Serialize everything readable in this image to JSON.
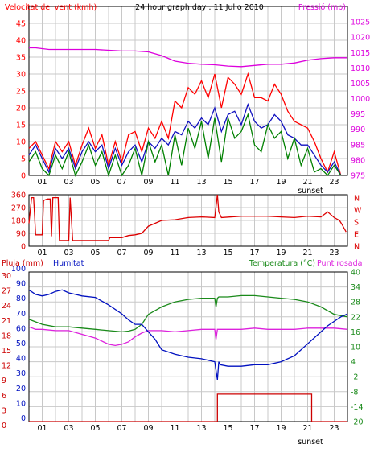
{
  "colors": {
    "wind": "#ff0000",
    "gust": "#1010c0",
    "avg": "#008000",
    "pressure": "#dd00dd",
    "direction": "#dd0000",
    "humidity": "#0010c0",
    "temperature": "#1a8a1a",
    "dewpoint": "#dd22dd",
    "rain": "#cc0000",
    "frame": "#000000",
    "grid": "#c8c8c8"
  },
  "chart_data": [
    {
      "type": "line",
      "id": "wind-pressure",
      "title": "24 hour graph day : 11 Julio 2010",
      "ylabel_left": "Velocitat del vent (kmh)",
      "ylabel_right": "Pressió (mb)",
      "xlabel_note": "sunset",
      "x_ticks": [
        "01",
        "03",
        "05",
        "07",
        "09",
        "11",
        "13",
        "15",
        "17",
        "19",
        "21",
        "23"
      ],
      "xlim": [
        0,
        24
      ],
      "ylim_left": [
        0,
        50
      ],
      "ylim_right": [
        975,
        1030
      ],
      "y_ticks_left": [
        "0",
        "5",
        "10",
        "15",
        "20",
        "25",
        "30",
        "35",
        "40",
        "45",
        "50"
      ],
      "y_ticks_right": [
        "975",
        "980",
        "985",
        "990",
        "995",
        "1000",
        "1005",
        "1010",
        "1015",
        "1020",
        "1025",
        "1030"
      ],
      "grid": true,
      "legend": "none",
      "series": [
        {
          "color": "pressure",
          "x": [
            0,
            0.5,
            1.5,
            3,
            5,
            7,
            8,
            9,
            10,
            11,
            12,
            13,
            14,
            15,
            16,
            17,
            18,
            19,
            20,
            21,
            22,
            23,
            24
          ],
          "y": [
            1016.5,
            1016.5,
            1016,
            1016,
            1016,
            1015.5,
            1015.5,
            1015.2,
            1014,
            1012.2,
            1011.5,
            1011.2,
            1011,
            1010.6,
            1010.4,
            1010.8,
            1011.2,
            1011.2,
            1011.6,
            1012.5,
            1013,
            1013.3,
            1013.3
          ]
        },
        {
          "color": "wind",
          "x": [
            0,
            0.5,
            1,
            1.5,
            2,
            2.5,
            3,
            3.5,
            4,
            4.5,
            5,
            5.5,
            6,
            6.5,
            7,
            7.5,
            8,
            8.5,
            9,
            9.5,
            10,
            10.5,
            11,
            11.5,
            12,
            12.5,
            13,
            13.5,
            14,
            14.5,
            15,
            15.5,
            16,
            16.5,
            17,
            17.5,
            18,
            18.5,
            19,
            19.5,
            20,
            20.5,
            21,
            21.5,
            22,
            22.5,
            23,
            23.5
          ],
          "y": [
            8,
            10,
            6,
            2,
            10,
            7,
            10,
            3,
            9,
            14,
            8,
            12,
            3,
            10,
            4,
            12,
            13,
            7,
            14,
            11,
            16,
            11,
            22,
            20,
            26,
            24,
            28,
            23,
            30,
            20,
            29,
            27,
            24,
            30,
            23,
            23,
            22,
            27,
            24,
            19,
            16,
            15,
            14,
            10,
            5,
            1,
            7,
            0
          ]
        },
        {
          "color": "gust",
          "x": [
            0,
            0.5,
            1,
            1.5,
            2,
            2.5,
            3,
            3.5,
            4,
            4.5,
            5,
            5.5,
            6,
            6.5,
            7,
            7.5,
            8,
            8.5,
            9,
            9.5,
            10,
            10.5,
            11,
            11.5,
            12,
            12.5,
            13,
            13.5,
            14,
            14.5,
            15,
            15.5,
            16,
            16.5,
            17,
            17.5,
            18,
            18.5,
            19,
            19.5,
            20,
            20.5,
            21,
            21.5,
            22,
            22.5,
            23,
            23.5
          ],
          "y": [
            6,
            9,
            5,
            1,
            8,
            5,
            8,
            2,
            7,
            10,
            7,
            9,
            2,
            8,
            3,
            7,
            9,
            4,
            10,
            8,
            11,
            9,
            13,
            12,
            16,
            14,
            17,
            15,
            20,
            13,
            18,
            19,
            15,
            21,
            16,
            14,
            15,
            18,
            16,
            12,
            11,
            9,
            9,
            6,
            3,
            1,
            4,
            0
          ]
        },
        {
          "color": "avg",
          "x": [
            0,
            0.5,
            1,
            1.5,
            2,
            2.5,
            3,
            3.5,
            4,
            4.5,
            5,
            5.5,
            6,
            6.5,
            7,
            7.5,
            8,
            8.5,
            9,
            9.5,
            10,
            10.5,
            11,
            11.5,
            12,
            12.5,
            13,
            13.5,
            14,
            14.5,
            15,
            15.5,
            16,
            16.5,
            17,
            17.5,
            18,
            18.5,
            19,
            19.5,
            20,
            20.5,
            21,
            21.5,
            22,
            22.5,
            23,
            23.5
          ],
          "y": [
            4,
            7,
            2,
            0,
            6,
            2,
            7,
            0,
            4,
            9,
            3,
            7,
            0,
            6,
            0,
            3,
            8,
            0,
            10,
            4,
            9,
            0,
            12,
            3,
            14,
            8,
            16,
            5,
            17,
            4,
            17,
            11,
            13,
            18,
            9,
            7,
            15,
            11,
            13,
            5,
            11,
            3,
            8,
            1,
            2,
            0,
            3,
            0
          ]
        }
      ]
    },
    {
      "type": "line",
      "id": "wind-direction",
      "x_ticks": [
        "01",
        "03",
        "05",
        "07",
        "09",
        "11",
        "13",
        "15",
        "17",
        "19",
        "21",
        "23"
      ],
      "xlim": [
        0,
        24
      ],
      "ylim": [
        0,
        360
      ],
      "y_ticks_left": [
        "0",
        "90",
        "180",
        "270",
        "360"
      ],
      "y_ticks_right": [
        "N",
        "E",
        "S",
        "W",
        "N"
      ],
      "grid": true,
      "legend": "none",
      "series": [
        {
          "color": "direction",
          "x": [
            0,
            0.2,
            0.35,
            0.5,
            1.0,
            1.1,
            1.4,
            1.6,
            1.7,
            1.8,
            2.2,
            2.3,
            3.0,
            3.1,
            3.3,
            6.0,
            6.1,
            7.0,
            7.5,
            8.0,
            8.5,
            9.0,
            10.0,
            11.0,
            12.0,
            13.0,
            14.0,
            14.2,
            14.3,
            14.5,
            16.0,
            18.0,
            19.0,
            20.0,
            21.0,
            22.0,
            22.5,
            23.0,
            23.4,
            23.6,
            23.9
          ],
          "y": [
            160,
            340,
            340,
            80,
            80,
            320,
            330,
            330,
            70,
            340,
            340,
            40,
            40,
            340,
            40,
            40,
            60,
            60,
            75,
            80,
            90,
            140,
            180,
            185,
            200,
            205,
            200,
            360,
            240,
            200,
            210,
            210,
            205,
            200,
            210,
            205,
            240,
            200,
            180,
            150,
            100
          ]
        }
      ]
    },
    {
      "type": "line",
      "id": "temp-humidity-rain",
      "ylabel_left": "Pluja (mm)",
      "ylabel_left2": "Humitat",
      "ylabel_right": "Temperatura (°C)",
      "ylabel_right2": "Punt rosada",
      "xlabel_note": "sunset",
      "x_ticks": [
        "01",
        "03",
        "05",
        "07",
        "09",
        "11",
        "13",
        "15",
        "17",
        "19",
        "21",
        "23"
      ],
      "xlim": [
        0,
        24
      ],
      "ylim_humidity": [
        0,
        100
      ],
      "ylim_rain": [
        0,
        30
      ],
      "ylim_right": [
        -20,
        40
      ],
      "y_ticks_humidity": [
        "0",
        "10",
        "20",
        "30",
        "40",
        "50",
        "60",
        "70",
        "80",
        "90",
        "100"
      ],
      "y_ticks_rain": [
        "0",
        "3",
        "6",
        "9",
        "12",
        "15",
        "18",
        "21",
        "24",
        "27",
        "30"
      ],
      "y_ticks_right": [
        "-20",
        "-14",
        "-8",
        "-2",
        "4",
        "10",
        "16",
        "22",
        "28",
        "34",
        "40"
      ],
      "grid": true,
      "legend": "none",
      "series": [
        {
          "color": "temperature",
          "x": [
            0,
            0.5,
            1,
            2,
            3,
            4,
            5,
            6,
            7,
            7.5,
            8,
            8.5,
            9,
            10,
            11,
            12,
            13,
            14,
            14.1,
            14.2,
            14.3,
            15,
            16,
            17,
            18,
            19,
            20,
            21,
            22,
            23,
            24
          ],
          "y": [
            21,
            20,
            19,
            18,
            18,
            17.5,
            17,
            16.5,
            16,
            16.3,
            17,
            19,
            23,
            26,
            28,
            29,
            29.5,
            29.5,
            26,
            29.5,
            30,
            30,
            30.5,
            30.5,
            30,
            29.5,
            29,
            28,
            26,
            23,
            22
          ]
        },
        {
          "color": "dewpoint",
          "x": [
            0,
            0.5,
            1,
            2,
            3,
            4,
            5,
            6,
            6.5,
            7,
            7.5,
            8,
            8.5,
            9,
            10,
            11,
            12,
            13,
            14,
            14.1,
            14.2,
            14.3,
            15,
            16,
            17,
            18,
            19,
            20,
            21,
            22,
            23,
            24
          ],
          "y": [
            18,
            17,
            17,
            16.5,
            16.5,
            15,
            13.5,
            11,
            10.5,
            11,
            12,
            14,
            15.5,
            16.5,
            16.5,
            16,
            16.5,
            17,
            17,
            13,
            17,
            17,
            17,
            17,
            17.5,
            17,
            17,
            17,
            17.5,
            17.5,
            17.5,
            17
          ]
        },
        {
          "color": "humidity",
          "x": [
            0,
            0.5,
            1,
            1.5,
            2,
            2.5,
            3,
            3.5,
            4,
            5,
            6,
            7,
            7.5,
            8,
            8.5,
            9,
            9.5,
            10,
            11,
            12,
            13,
            14,
            14.2,
            14.3,
            14.4,
            15,
            16,
            17,
            18,
            19,
            20,
            21,
            22,
            22.5,
            23,
            23.5,
            24
          ],
          "y": [
            88,
            85,
            84,
            85,
            87,
            88,
            86,
            85,
            84,
            83,
            78,
            72,
            68,
            65,
            65,
            60,
            55,
            48,
            45,
            43,
            42,
            40,
            28,
            40,
            38,
            37,
            37,
            38,
            38,
            40,
            44,
            52,
            60,
            64,
            67,
            70,
            72
          ]
        },
        {
          "color": "rain",
          "step": true,
          "x": [
            0,
            14.2,
            14.2,
            21.3,
            21.3,
            24
          ],
          "y": [
            0,
            0,
            5.5,
            5.5,
            0,
            0
          ]
        }
      ]
    }
  ]
}
